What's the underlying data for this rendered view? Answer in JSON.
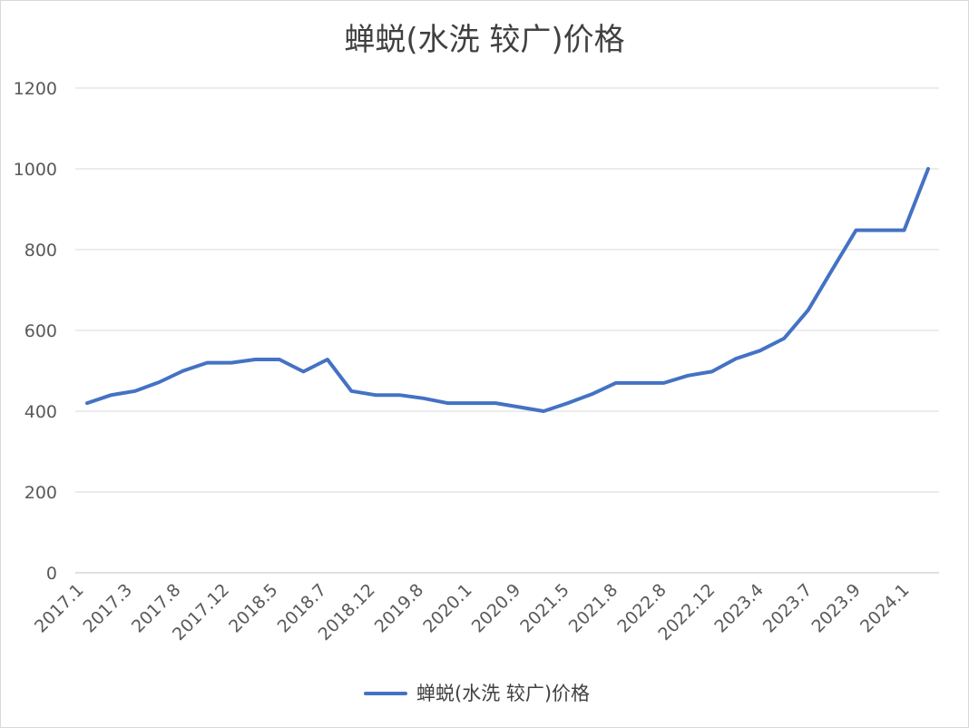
{
  "chart_data": {
    "type": "line",
    "title": "蝉蜕(水洗 较广)价格",
    "xlabel": "",
    "ylabel": "",
    "ylim": [
      0,
      1200
    ],
    "yticks": [
      0,
      200,
      400,
      600,
      800,
      1000,
      1200
    ],
    "x_tick_labels": [
      "2017.1",
      "2017.3",
      "2017.8",
      "2017.12",
      "2018.5",
      "2018.7",
      "2018.12",
      "2019.8",
      "2020.1",
      "2020.9",
      "2021.5",
      "2021.8",
      "2022.8",
      "2022.12",
      "2023.4",
      "2023.7",
      "2023.9",
      "2024.1"
    ],
    "grid": "horizontal",
    "legend_position": "bottom",
    "line_color": "#4472c4",
    "series": [
      {
        "name": "蝉蜕(水洗 较广)价格",
        "values": [
          420,
          440,
          450,
          472,
          500,
          520,
          520,
          528,
          528,
          498,
          528,
          450,
          440,
          440,
          432,
          420,
          420,
          420,
          410,
          400,
          420,
          442,
          470,
          470,
          470,
          488,
          498,
          530,
          550,
          580,
          650,
          750,
          848,
          848,
          848,
          1000
        ]
      }
    ]
  }
}
